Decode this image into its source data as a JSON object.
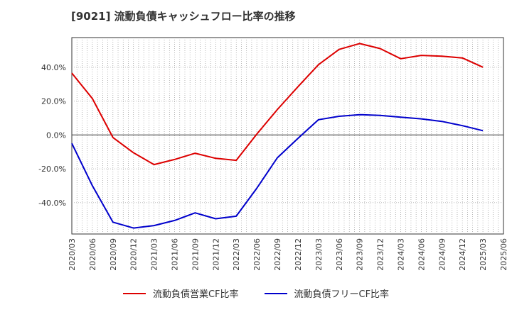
{
  "chart_data": {
    "type": "line",
    "title": "[9021]  流動負債キャッシュフロー比率の推移",
    "categories": [
      "2020/03",
      "2020/06",
      "2020/09",
      "2020/12",
      "2021/03",
      "2021/06",
      "2021/09",
      "2021/12",
      "2022/03",
      "2022/06",
      "2022/09",
      "2022/12",
      "2023/03",
      "2023/06",
      "2023/09",
      "2023/12",
      "2024/03",
      "2024/06",
      "2024/09",
      "2024/12",
      "2025/03",
      "2025/06"
    ],
    "y_ticks": [
      40.0,
      20.0,
      0.0,
      -20.0,
      -40.0
    ],
    "y_tick_labels": [
      "40.0%",
      "20.0%",
      "0.0%",
      "-20.0%",
      "-40.0%"
    ],
    "ylim": [
      -58.5,
      57.5
    ],
    "series": [
      {
        "name": "流動負債営業CF比率",
        "color": "#dd0000",
        "values": [
          36.5,
          21.5,
          -1.5,
          -10.5,
          -17.5,
          -14.5,
          -10.8,
          -13.8,
          -15.0,
          0.5,
          15.0,
          28.5,
          41.5,
          50.5,
          54.0,
          51.0,
          45.0,
          47.0,
          46.5,
          45.5,
          40.0,
          null
        ]
      },
      {
        "name": "流動負債フリーCF比率",
        "color": "#0000cc",
        "values": [
          -5.0,
          -30.0,
          -51.5,
          -55.0,
          -53.5,
          -50.5,
          -46.0,
          -49.5,
          -48.0,
          -31.5,
          -13.5,
          -2.0,
          9.0,
          11.0,
          12.0,
          11.5,
          10.5,
          9.5,
          8.0,
          5.5,
          2.5,
          null
        ]
      }
    ]
  }
}
